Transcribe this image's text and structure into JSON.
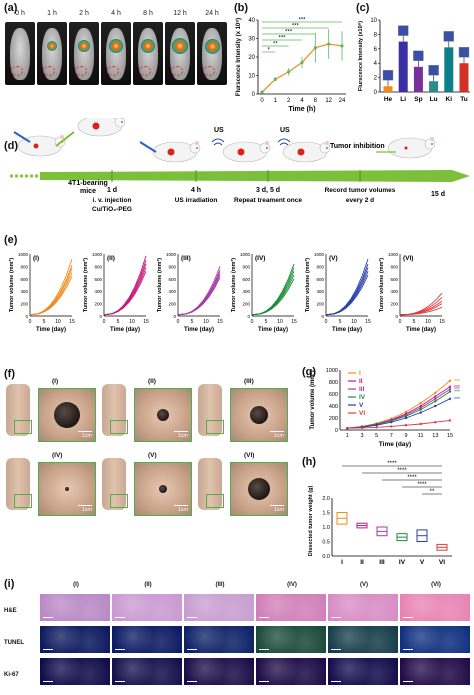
{
  "panels": {
    "a": {
      "label": "(a)",
      "times": [
        "0 h",
        "1 h",
        "2 h",
        "4 h",
        "8 h",
        "12 h",
        "24 h"
      ]
    },
    "b": {
      "label": "(b)",
      "ylabel": "Flurscence Intensity (x 10⁸)",
      "xlabel": "Time (h)",
      "sig": [
        "***",
        "***",
        "***",
        "***",
        "**",
        "*"
      ]
    },
    "c": {
      "label": "(c)",
      "ylabel": "Flurscence Intensity (x10⁸)",
      "organs": [
        "He",
        "Li",
        "Sp",
        "Lu",
        "Ki",
        "Tu"
      ]
    },
    "d": {
      "label": "(d)",
      "model": "4T1-bearing mice",
      "steps": [
        {
          "day": "1 d",
          "desc1": "i. v. injection",
          "desc2": "Cu/TiO₂-PEG"
        },
        {
          "day": "4 h",
          "desc1": "US irradiation",
          "desc2": ""
        },
        {
          "day": "3 d, 5 d",
          "desc1": "Repeat treament once",
          "desc2": ""
        },
        {
          "day": "",
          "desc1": "Record tumor volumes",
          "desc2": "every 2 d"
        },
        {
          "day": "15 d",
          "desc1": "",
          "desc2": ""
        }
      ],
      "us1": "US",
      "us2": "US",
      "inhibition": "Tumor inhibition"
    },
    "e": {
      "label": "(e)",
      "ylabel": "Tumor volume (mm³)",
      "xlabel": "Time (day)",
      "groups": [
        "(I)",
        "(II)",
        "(III)",
        "(IV)",
        "(V)",
        "(VI)"
      ],
      "yticks": [
        "0",
        "200",
        "400",
        "600",
        "800",
        "1000"
      ],
      "xticks": [
        "0",
        "5",
        "10",
        "15"
      ]
    },
    "f": {
      "label": "(f)",
      "groups": [
        "(I)",
        "(II)",
        "(III)",
        "(IV)",
        "(V)",
        "(VI)"
      ],
      "scale": "1cm"
    },
    "g": {
      "label": "(g)",
      "ylabel": "Tumor volume (mm³)",
      "xlabel": "Time (day)",
      "legend": [
        "I",
        "II",
        "III",
        "IV",
        "V",
        "VI"
      ]
    },
    "h": {
      "label": "(h)",
      "ylabel": "Dissected tumor weight (g)",
      "sig": [
        "****",
        "****",
        "****",
        "****",
        "**"
      ]
    },
    "i": {
      "label": "(i)",
      "cols": [
        "(I)",
        "(II)",
        "(III)",
        "(IV)",
        "(V)",
        "(VI)"
      ],
      "rows": [
        "H&E",
        "TUNEL",
        "Ki-67"
      ]
    }
  },
  "colors": {
    "I": "#f08a1c",
    "II": "#c8187a",
    "III": "#a43aa8",
    "IV": "#1a8c3a",
    "V": "#2b3fa8",
    "VI": "#e03a3a",
    "accent": "#5cb85c"
  },
  "chart_data": [
    {
      "type": "line",
      "title": "",
      "xlabel": "Time (h)",
      "ylabel": "Flurscence Intensity (x 10⁸)",
      "x": [
        0,
        1,
        2,
        4,
        8,
        12,
        24
      ],
      "series": [
        {
          "values": [
            1,
            8,
            12,
            17,
            25,
            27,
            26
          ]
        }
      ],
      "ylim": [
        0,
        40
      ],
      "grid": false
    },
    {
      "type": "bar",
      "title": "",
      "xlabel": "",
      "ylabel": "Flurscence Intensity (x10⁸)",
      "categories": [
        "He",
        "Li",
        "Sp",
        "Lu",
        "Ki",
        "Tu"
      ],
      "values": [
        0.8,
        7.0,
        3.5,
        1.5,
        6.2,
        4.0
      ],
      "ylim": [
        0,
        10
      ]
    },
    {
      "type": "line",
      "title": "",
      "xlabel": "Time (day)",
      "ylabel": "Tumor volume (mm³)",
      "x": [
        1,
        3,
        5,
        7,
        9,
        11,
        13,
        15
      ],
      "series": [
        {
          "name": "I",
          "values": [
            30,
            60,
            110,
            190,
            300,
            450,
            620,
            820
          ]
        },
        {
          "name": "II",
          "values": [
            30,
            55,
            100,
            170,
            270,
            400,
            560,
            720
          ]
        },
        {
          "name": "III",
          "values": [
            30,
            55,
            95,
            160,
            250,
            370,
            520,
            680
          ]
        },
        {
          "name": "IV",
          "values": [
            30,
            50,
            90,
            150,
            230,
            340,
            480,
            640
          ]
        },
        {
          "name": "V",
          "values": [
            30,
            45,
            80,
            130,
            200,
            290,
            400,
            520
          ]
        },
        {
          "name": "VI",
          "values": [
            30,
            35,
            45,
            60,
            80,
            100,
            130,
            160
          ]
        }
      ],
      "ylim": [
        0,
        1000
      ]
    },
    {
      "type": "box",
      "title": "",
      "xlabel": "",
      "ylabel": "Dissected tumor weight (g)",
      "categories": [
        "I",
        "II",
        "III",
        "IV",
        "V",
        "VI"
      ],
      "values": [
        1.3,
        1.05,
        0.85,
        0.65,
        0.7,
        0.3
      ],
      "ylim": [
        0,
        2.0
      ]
    }
  ]
}
